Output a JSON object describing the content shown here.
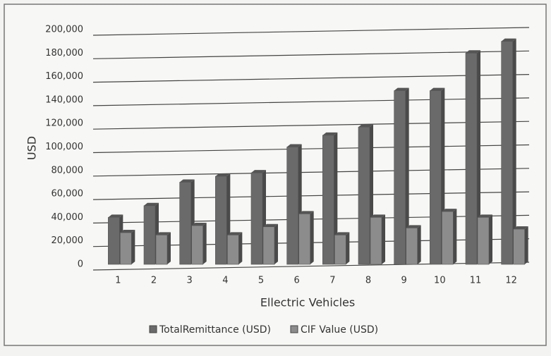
{
  "chart_data": {
    "type": "bar",
    "y_label": "USD",
    "x_label": "Ellectric Vehicles",
    "categories": [
      "1",
      "2",
      "3",
      "4",
      "5",
      "6",
      "7",
      "8",
      "9",
      "10",
      "11",
      "12"
    ],
    "series": [
      {
        "name": "TotalRemittance (USD)",
        "color": "#6a6a6a",
        "values": [
          40000,
          50000,
          70000,
          75000,
          78000,
          100000,
          110000,
          117000,
          148000,
          148000,
          180000,
          190000
        ]
      },
      {
        "name": "CIF Value (USD)",
        "color": "#8c8c8c",
        "values": [
          27000,
          25000,
          33000,
          25000,
          32000,
          43000,
          25000,
          40000,
          31000,
          45000,
          40000,
          30000
        ]
      }
    ],
    "ylim": [
      0,
      200000
    ],
    "yticks": [
      0,
      {
        "value": 20000,
        "label": "20,000"
      },
      {
        "value": 40000,
        "label": "40,000"
      },
      {
        "value": 60000,
        "label": "60,000"
      },
      {
        "value": 80000,
        "label": "80,000"
      },
      {
        "value": 100000,
        "label": "100,000"
      },
      {
        "value": 120000,
        "label": "120,000"
      },
      {
        "value": 140000,
        "label": "140,000"
      },
      {
        "value": 160000,
        "label": "160,000"
      },
      {
        "value": 180000,
        "label": "180,000"
      },
      {
        "value": 200000,
        "label": "200,000"
      }
    ],
    "grid": true,
    "legend": "bottom"
  }
}
